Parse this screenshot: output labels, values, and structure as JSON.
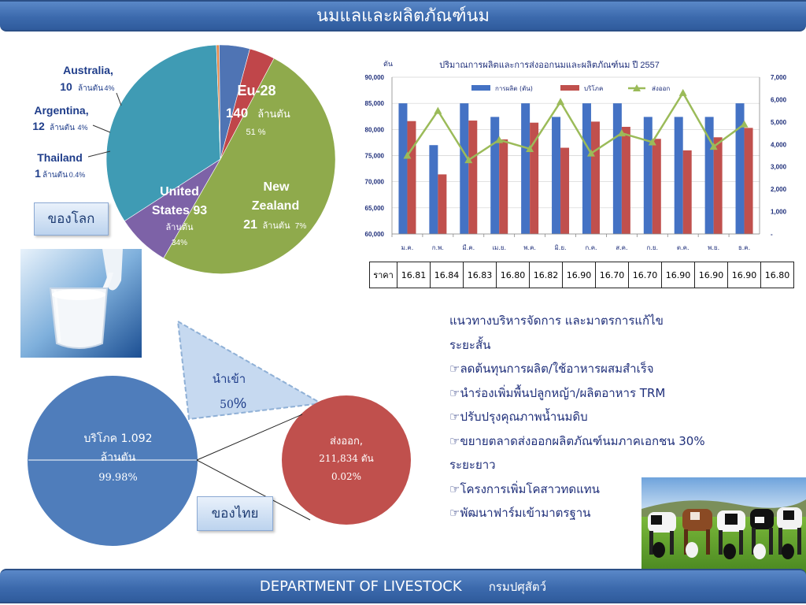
{
  "header": {
    "title": "นมแลและผลิตภัณฑ์นม"
  },
  "footer": {
    "department": "DEPARTMENT  OF  LIVESTOCK",
    "thai_name": "กรมปศุสัตว์"
  },
  "world": {
    "label": "ของโลก",
    "slices": [
      {
        "name": "Eu-28",
        "value_text": "140",
        "unit": "ล้านตัน",
        "pct_text": "51  %",
        "value": 140,
        "color": "#8faa4c"
      },
      {
        "name": "New Zealand",
        "name_line1": "New",
        "name_line2": "Zealand",
        "value_text": "21",
        "unit": "ล้านตัน",
        "pct_text": "7%",
        "value": 21,
        "color": "#7d62a7"
      },
      {
        "name": "United States",
        "name_line1": "United",
        "name_line2": "States  93",
        "unit": "ล้านตัน",
        "pct_text": "34%",
        "value": 93,
        "color": "#3f9bb4"
      },
      {
        "name": "Thailand",
        "value_text": "1",
        "unit": "ล้านตัน",
        "pct_text": "0.4%",
        "value": 1.1,
        "color": "#e0874a"
      },
      {
        "name": "Argentina,",
        "value_text": "12",
        "unit": "ล้านตัน",
        "pct_text": "4%",
        "value": 12,
        "color": "#4f74b4"
      },
      {
        "name": "Australia,",
        "value_text": "10",
        "unit": "ล้านตัน",
        "pct_text": "4%",
        "value": 10,
        "color": "#c0464a"
      }
    ]
  },
  "chart_data": {
    "type": "bar",
    "title": "ปริมาณการผลิตและการส่งออกนมและผลิตภัณฑ์นม ปี 2557",
    "ylabel": "ตัน",
    "categories": [
      "ม.ค.",
      "ก.พ.",
      "มี.ค.",
      "เม.ย.",
      "พ.ค.",
      "มิ.ย.",
      "ก.ค.",
      "ส.ค.",
      "ก.ย.",
      "ต.ค.",
      "พ.ย.",
      "ธ.ค."
    ],
    "series": [
      {
        "name": "การผลิต (ตัน)",
        "type": "bar",
        "axis": "left",
        "color": "#4472c4",
        "values": [
          85000,
          77000,
          85000,
          82400,
          85000,
          82400,
          85000,
          85000,
          82400,
          82400,
          82400,
          85000
        ]
      },
      {
        "name": "บริโภค",
        "type": "bar",
        "axis": "left",
        "color": "#c0504d",
        "values": [
          81600,
          71400,
          81700,
          78100,
          81300,
          76500,
          81500,
          80500,
          78200,
          76000,
          78500,
          80300
        ]
      },
      {
        "name": "ส่งออก",
        "type": "line",
        "axis": "right",
        "color": "#9bbb59",
        "values": [
          3500,
          5500,
          3300,
          4200,
          3800,
          5900,
          3600,
          4500,
          4100,
          6300,
          3900,
          4900
        ]
      }
    ],
    "ylim": [
      60000,
      90000
    ],
    "yticks": [
      "60,000",
      "65,000",
      "70,000",
      "75,000",
      "80,000",
      "85,000",
      "90,000"
    ],
    "y2lim": [
      0,
      7000
    ],
    "y2ticks": [
      "-",
      "1,000",
      "2,000",
      "3,000",
      "4,000",
      "5,000",
      "6,000",
      "7,000"
    ],
    "legend": "top"
  },
  "price_table": {
    "label": "ราคา",
    "values": [
      "16.81",
      "16.84",
      "16.83",
      "16.80",
      "16.82",
      "16.90",
      "16.70",
      "16.70",
      "16.90",
      "16.90",
      "16.90",
      "16.80"
    ]
  },
  "measures": {
    "heading": "แนวทางบริหารจัดการ และมาตรการแก้ไข",
    "short_term": "ระยะสั้น",
    "short_items": [
      "ลดต้นทุนการผลิต/ใช้อาหารผสมสำเร็จ",
      "นำร่องเพิ่มพื้นปลูกหญ้า/ผลิตอาหาร TRM",
      "ปรับปรุงคุณภาพน้ำนมดิบ",
      "ขยายตลาดส่งออกผลิตภัณฑ์นมภาคเอกชน 30%"
    ],
    "long_term": "ระยะยาว",
    "long_items": [
      "โครงการเพิ่มโคสาวทดแทน",
      "พัฒนาฟาร์มเข้ามาตรฐาน"
    ],
    "bullet_icon": "pointing-hand-icon"
  },
  "thai": {
    "label": "ของไทย",
    "consume_title": "บริโภค 1.092",
    "consume_unit": "ล้านตัน",
    "consume_pct": "99.98%",
    "export_title": "ส่งออก,",
    "export_value": "211,834 ตัน",
    "export_pct": "0.02%",
    "import_title": "นำเข้า",
    "import_pct_num": "50",
    "import_pct_sign": "%",
    "consume_color": "#4f7dbb",
    "export_color": "#c0504d"
  }
}
